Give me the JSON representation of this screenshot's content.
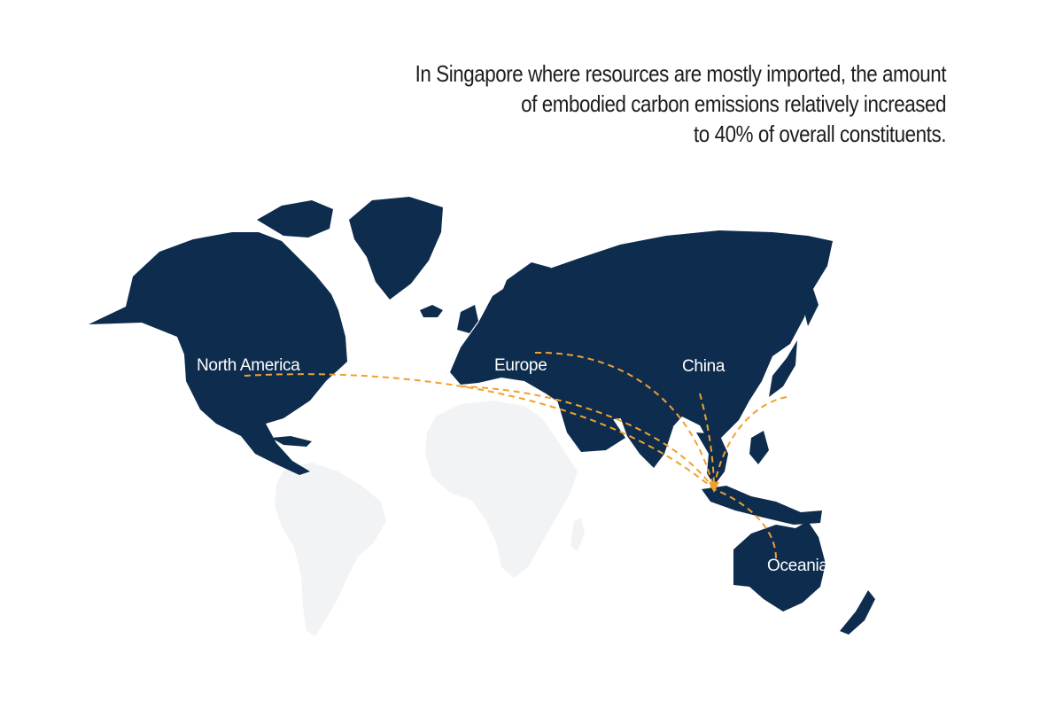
{
  "headline": {
    "lines": [
      "In Singapore where resources are mostly imported, the amount",
      "of embodied carbon emissions relatively increased",
      "to 40% of overall constituents."
    ]
  },
  "map": {
    "land_color": "#0e2c4e",
    "faint_land_color": "#f2f3f5",
    "route_color": "#f0a030",
    "destination": "Singapore",
    "regions": [
      {
        "name": "North America"
      },
      {
        "name": "Europe"
      },
      {
        "name": "China"
      },
      {
        "name": "Oceania"
      }
    ]
  }
}
